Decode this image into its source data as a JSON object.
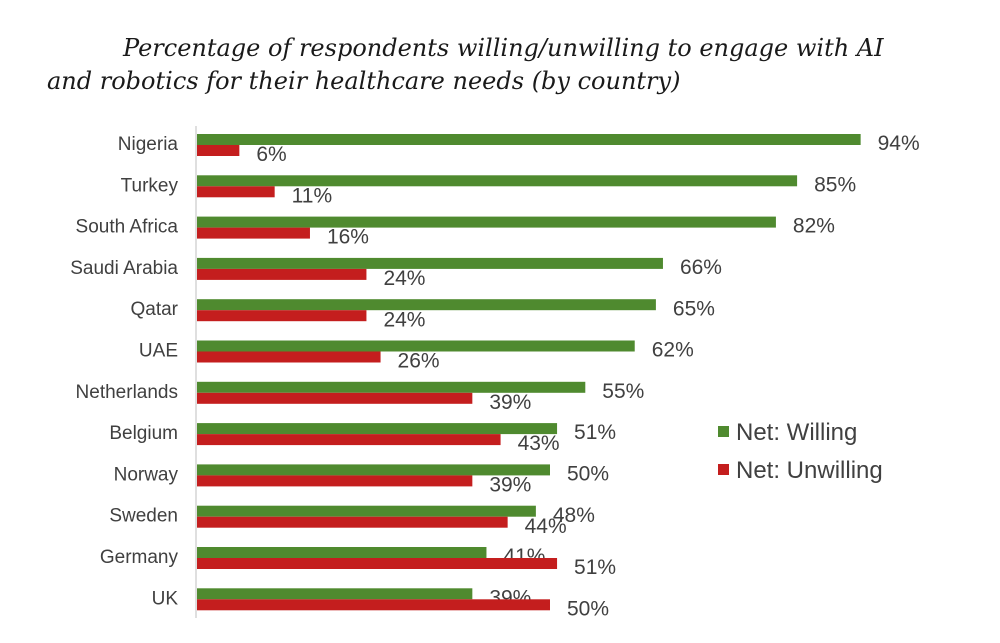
{
  "chart_data": {
    "type": "bar",
    "orientation": "horizontal",
    "title_lines": [
      "Percentage of respondents willing/unwilling to engage with AI",
      "and robotics for their healthcare needs (by country)"
    ],
    "categories": [
      "Nigeria",
      "Turkey",
      "South Africa",
      "Saudi Arabia",
      "Qatar",
      "UAE",
      "Netherlands",
      "Belgium",
      "Norway",
      "Sweden",
      "Germany",
      "UK"
    ],
    "series": [
      {
        "name": "Net: Willing",
        "color": "#4f8a2f",
        "values": [
          94,
          85,
          82,
          66,
          65,
          62,
          55,
          51,
          50,
          48,
          41,
          39
        ],
        "labels": [
          "94%",
          "85%",
          "82%",
          "66%",
          "65%",
          "62%",
          "55%",
          "51%",
          "50%",
          "48%",
          "41%",
          "39%"
        ]
      },
      {
        "name": "Net: Unwilling",
        "color": "#c41e1e",
        "values": [
          6,
          11,
          16,
          24,
          24,
          26,
          39,
          43,
          39,
          44,
          51,
          50
        ],
        "labels": [
          "6%",
          "11%",
          "16%",
          "24%",
          "24%",
          "26%",
          "39%",
          "43%",
          "39%",
          "44%",
          "51%",
          "50%"
        ]
      }
    ],
    "xlim": [
      0,
      100
    ],
    "unit": "%",
    "grid": false,
    "legend_position": "right"
  }
}
